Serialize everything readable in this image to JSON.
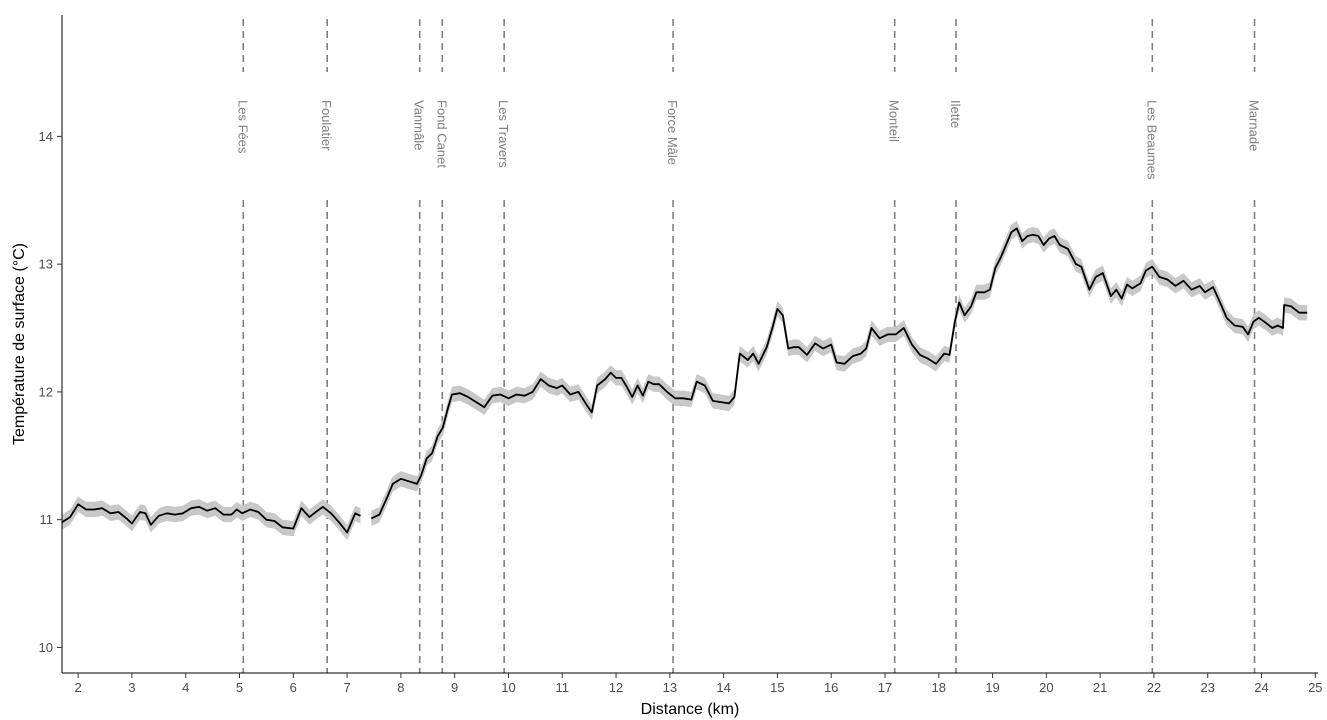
{
  "chart_data": {
    "type": "line",
    "xlabel": "Distance (km)",
    "ylabel": "Température de surface (°C)",
    "xlim": [
      1.7,
      25.05
    ],
    "ylim": [
      9.8,
      14.95
    ],
    "x_ticks": [
      2,
      3,
      4,
      5,
      6,
      7,
      8,
      9,
      10,
      11,
      12,
      13,
      14,
      15,
      16,
      17,
      18,
      19,
      20,
      21,
      22,
      23,
      24,
      25
    ],
    "y_ticks": [
      10,
      11,
      12,
      13,
      14
    ],
    "grid": false,
    "colors": {
      "line": "#000000",
      "band": "#c8c8c8",
      "reference": "#7f7f7f"
    },
    "sites": [
      {
        "name": "Les Fées",
        "x": 5.07
      },
      {
        "name": "Foulatier",
        "x": 6.63
      },
      {
        "name": "Vanmâle",
        "x": 8.35
      },
      {
        "name": "Fond Canet",
        "x": 8.77
      },
      {
        "name": "Les Travers",
        "x": 9.92
      },
      {
        "name": "Force Mâle",
        "x": 13.06
      },
      {
        "name": "Monteil",
        "x": 17.18
      },
      {
        "name": "Ilette",
        "x": 18.32
      },
      {
        "name": "Les Beaumes",
        "x": 21.97
      },
      {
        "name": "Marnade",
        "x": 23.87
      }
    ],
    "series": [
      {
        "band_halfwidth": 0.06,
        "segments": [
          [
            [
              1.7,
              10.98
            ],
            [
              1.85,
              11.02
            ],
            [
              2.0,
              11.12
            ],
            [
              2.15,
              11.08
            ],
            [
              2.3,
              11.08
            ],
            [
              2.45,
              11.09
            ],
            [
              2.6,
              11.05
            ],
            [
              2.75,
              11.06
            ],
            [
              2.9,
              11.01
            ],
            [
              3.0,
              10.97
            ],
            [
              3.15,
              11.06
            ],
            [
              3.25,
              11.05
            ],
            [
              3.35,
              10.96
            ],
            [
              3.5,
              11.03
            ],
            [
              3.65,
              11.05
            ],
            [
              3.8,
              11.04
            ],
            [
              3.95,
              11.05
            ],
            [
              4.1,
              11.09
            ],
            [
              4.25,
              11.1
            ],
            [
              4.4,
              11.07
            ],
            [
              4.55,
              11.09
            ],
            [
              4.7,
              11.04
            ],
            [
              4.85,
              11.04
            ],
            [
              4.95,
              11.08
            ],
            [
              5.05,
              11.05
            ],
            [
              5.2,
              11.08
            ],
            [
              5.35,
              11.06
            ],
            [
              5.5,
              11.0
            ],
            [
              5.65,
              10.99
            ],
            [
              5.8,
              10.94
            ],
            [
              6.0,
              10.93
            ],
            [
              6.15,
              11.09
            ],
            [
              6.3,
              11.02
            ],
            [
              6.45,
              11.07
            ],
            [
              6.55,
              11.1
            ],
            [
              6.7,
              11.05
            ],
            [
              6.85,
              10.98
            ],
            [
              7.0,
              10.9
            ],
            [
              7.15,
              11.05
            ],
            [
              7.25,
              11.03
            ]
          ],
          [
            [
              7.45,
              11.01
            ],
            [
              7.6,
              11.04
            ],
            [
              7.75,
              11.18
            ],
            [
              7.85,
              11.28
            ],
            [
              8.0,
              11.32
            ],
            [
              8.15,
              11.3
            ],
            [
              8.3,
              11.28
            ],
            [
              8.38,
              11.35
            ],
            [
              8.48,
              11.48
            ],
            [
              8.58,
              11.52
            ],
            [
              8.68,
              11.65
            ],
            [
              8.78,
              11.72
            ],
            [
              8.88,
              11.88
            ],
            [
              8.95,
              11.98
            ],
            [
              9.1,
              11.99
            ],
            [
              9.25,
              11.96
            ],
            [
              9.4,
              11.92
            ],
            [
              9.55,
              11.88
            ],
            [
              9.7,
              11.97
            ],
            [
              9.85,
              11.98
            ],
            [
              10.0,
              11.95
            ],
            [
              10.15,
              11.98
            ],
            [
              10.3,
              11.97
            ],
            [
              10.45,
              12.0
            ],
            [
              10.6,
              12.1
            ],
            [
              10.75,
              12.05
            ],
            [
              10.9,
              12.03
            ],
            [
              11.0,
              12.05
            ],
            [
              11.15,
              11.98
            ],
            [
              11.3,
              12.0
            ],
            [
              11.45,
              11.9
            ],
            [
              11.55,
              11.84
            ],
            [
              11.65,
              12.05
            ],
            [
              11.8,
              12.1
            ],
            [
              11.9,
              12.15
            ],
            [
              12.0,
              12.11
            ],
            [
              12.1,
              12.11
            ],
            [
              12.2,
              12.04
            ],
            [
              12.3,
              11.96
            ],
            [
              12.4,
              12.05
            ],
            [
              12.5,
              11.97
            ],
            [
              12.6,
              12.08
            ],
            [
              12.7,
              12.06
            ],
            [
              12.8,
              12.06
            ],
            [
              12.95,
              12.0
            ],
            [
              13.1,
              11.95
            ],
            [
              13.25,
              11.95
            ],
            [
              13.4,
              11.94
            ],
            [
              13.5,
              12.08
            ],
            [
              13.65,
              12.05
            ],
            [
              13.8,
              11.93
            ],
            [
              13.95,
              11.92
            ],
            [
              14.1,
              11.91
            ],
            [
              14.2,
              11.96
            ],
            [
              14.3,
              12.3
            ],
            [
              14.45,
              12.25
            ],
            [
              14.55,
              12.3
            ],
            [
              14.65,
              12.22
            ],
            [
              14.8,
              12.35
            ],
            [
              14.92,
              12.52
            ],
            [
              15.0,
              12.65
            ],
            [
              15.1,
              12.6
            ],
            [
              15.2,
              12.34
            ],
            [
              15.3,
              12.35
            ],
            [
              15.4,
              12.35
            ],
            [
              15.55,
              12.29
            ],
            [
              15.7,
              12.38
            ],
            [
              15.85,
              12.34
            ],
            [
              16.0,
              12.37
            ],
            [
              16.1,
              12.23
            ],
            [
              16.25,
              12.22
            ],
            [
              16.4,
              12.28
            ],
            [
              16.55,
              12.3
            ],
            [
              16.65,
              12.34
            ],
            [
              16.75,
              12.5
            ],
            [
              16.9,
              12.42
            ],
            [
              17.05,
              12.45
            ],
            [
              17.2,
              12.45
            ],
            [
              17.35,
              12.5
            ],
            [
              17.5,
              12.37
            ],
            [
              17.65,
              12.29
            ],
            [
              17.8,
              12.26
            ],
            [
              17.95,
              12.22
            ],
            [
              18.1,
              12.3
            ],
            [
              18.2,
              12.29
            ],
            [
              18.3,
              12.55
            ],
            [
              18.38,
              12.7
            ],
            [
              18.48,
              12.6
            ],
            [
              18.6,
              12.67
            ],
            [
              18.7,
              12.78
            ],
            [
              18.85,
              12.78
            ],
            [
              18.95,
              12.8
            ],
            [
              19.05,
              12.97
            ],
            [
              19.15,
              13.05
            ],
            [
              19.25,
              13.15
            ],
            [
              19.35,
              13.25
            ],
            [
              19.45,
              13.28
            ],
            [
              19.55,
              13.18
            ],
            [
              19.65,
              13.22
            ],
            [
              19.75,
              13.23
            ],
            [
              19.85,
              13.22
            ],
            [
              19.95,
              13.15
            ],
            [
              20.05,
              13.2
            ],
            [
              20.15,
              13.22
            ],
            [
              20.25,
              13.15
            ],
            [
              20.4,
              13.12
            ],
            [
              20.55,
              13.0
            ],
            [
              20.65,
              12.98
            ],
            [
              20.8,
              12.8
            ],
            [
              20.92,
              12.9
            ],
            [
              21.05,
              12.93
            ],
            [
              21.2,
              12.75
            ],
            [
              21.3,
              12.8
            ],
            [
              21.4,
              12.73
            ],
            [
              21.5,
              12.84
            ],
            [
              21.6,
              12.81
            ],
            [
              21.75,
              12.85
            ],
            [
              21.85,
              12.95
            ],
            [
              21.97,
              12.98
            ],
            [
              22.1,
              12.9
            ],
            [
              22.25,
              12.88
            ],
            [
              22.4,
              12.83
            ],
            [
              22.55,
              12.87
            ],
            [
              22.7,
              12.8
            ],
            [
              22.85,
              12.83
            ],
            [
              22.95,
              12.78
            ],
            [
              23.1,
              12.82
            ],
            [
              23.25,
              12.68
            ],
            [
              23.35,
              12.58
            ],
            [
              23.5,
              12.52
            ],
            [
              23.65,
              12.51
            ],
            [
              23.75,
              12.45
            ],
            [
              23.85,
              12.55
            ],
            [
              23.95,
              12.58
            ],
            [
              24.05,
              12.55
            ],
            [
              24.2,
              12.5
            ],
            [
              24.3,
              12.52
            ],
            [
              24.4,
              12.5
            ],
            [
              24.42,
              12.68
            ],
            [
              24.55,
              12.67
            ],
            [
              24.7,
              12.62
            ],
            [
              24.85,
              12.62
            ]
          ]
        ]
      }
    ]
  }
}
